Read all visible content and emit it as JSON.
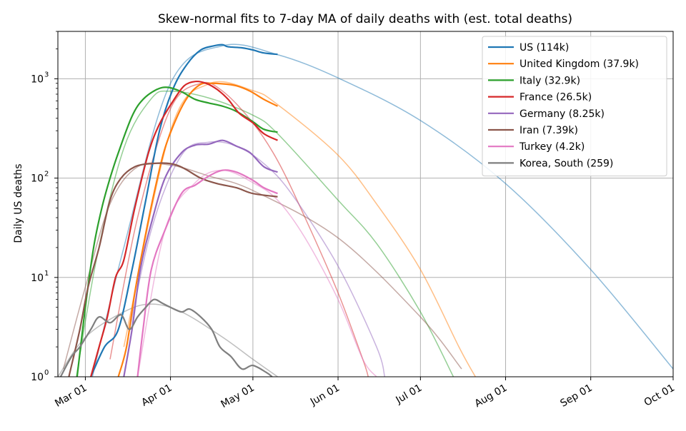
{
  "chart_data": {
    "type": "line",
    "title": "Skew-normal fits to 7-day MA of daily deaths with (est. total deaths)",
    "xlabel": "",
    "ylabel": "Daily US deaths",
    "y_scale": "log",
    "ylim": [
      1,
      3000
    ],
    "xlim": [
      "2020-02-20",
      "2020-10-01"
    ],
    "x_ticks": [
      {
        "date": "2020-03-01",
        "label": "Mar 01"
      },
      {
        "date": "2020-04-01",
        "label": "Apr 01"
      },
      {
        "date": "2020-05-01",
        "label": "May 01"
      },
      {
        "date": "2020-06-01",
        "label": "Jun 01"
      },
      {
        "date": "2020-07-01",
        "label": "Jul 01"
      },
      {
        "date": "2020-08-01",
        "label": "Aug 01"
      },
      {
        "date": "2020-09-01",
        "label": "Sep 01"
      },
      {
        "date": "2020-10-01",
        "label": "Oct 01"
      }
    ],
    "y_ticks": [
      {
        "value": 1,
        "label": "10",
        "exp": "0"
      },
      {
        "value": 10,
        "label": "10",
        "exp": "1"
      },
      {
        "value": 100,
        "label": "10",
        "exp": "2"
      },
      {
        "value": 1000,
        "label": "10",
        "exp": "3"
      }
    ],
    "grid": true,
    "legend_position": "top-right",
    "series": [
      {
        "name": "US (114k)",
        "color": "#1f77b4",
        "observed": [
          [
            "2020-03-03",
            1
          ],
          [
            "2020-03-08",
            2
          ],
          [
            "2020-03-13",
            3
          ],
          [
            "2020-03-18",
            12
          ],
          [
            "2020-03-23",
            60
          ],
          [
            "2020-03-28",
            300
          ],
          [
            "2020-04-02",
            800
          ],
          [
            "2020-04-07",
            1400
          ],
          [
            "2020-04-12",
            1950
          ],
          [
            "2020-04-17",
            2150
          ],
          [
            "2020-04-20",
            2200
          ],
          [
            "2020-04-22",
            2100
          ],
          [
            "2020-04-27",
            2050
          ],
          [
            "2020-05-01",
            1950
          ],
          [
            "2020-05-05",
            1820
          ],
          [
            "2020-05-10",
            1760
          ]
        ],
        "fit": [
          [
            "2020-03-01",
            0.5
          ],
          [
            "2020-03-15",
            20
          ],
          [
            "2020-04-01",
            900
          ],
          [
            "2020-04-20",
            2150
          ],
          [
            "2020-05-10",
            1750
          ],
          [
            "2020-06-01",
            1020
          ],
          [
            "2020-07-01",
            380
          ],
          [
            "2020-08-01",
            88
          ],
          [
            "2020-09-01",
            12
          ],
          [
            "2020-10-01",
            1.2
          ]
        ]
      },
      {
        "name": "United Kingdom (37.9k)",
        "color": "#ff7f0e",
        "observed": [
          [
            "2020-03-13",
            1
          ],
          [
            "2020-03-16",
            2
          ],
          [
            "2020-03-19",
            7
          ],
          [
            "2020-03-22",
            20
          ],
          [
            "2020-03-26",
            70
          ],
          [
            "2020-03-30",
            200
          ],
          [
            "2020-04-04",
            450
          ],
          [
            "2020-04-08",
            700
          ],
          [
            "2020-04-12",
            880
          ],
          [
            "2020-04-15",
            900
          ],
          [
            "2020-04-20",
            890
          ],
          [
            "2020-04-25",
            850
          ],
          [
            "2020-04-30",
            750
          ],
          [
            "2020-05-05",
            620
          ],
          [
            "2020-05-10",
            530
          ]
        ],
        "fit": [
          [
            "2020-03-15",
            2
          ],
          [
            "2020-04-01",
            300
          ],
          [
            "2020-04-15",
            890
          ],
          [
            "2020-05-01",
            760
          ],
          [
            "2020-05-10",
            550
          ],
          [
            "2020-06-01",
            170
          ],
          [
            "2020-06-15",
            55
          ],
          [
            "2020-07-01",
            12
          ],
          [
            "2020-07-15",
            2
          ],
          [
            "2020-07-21",
            1
          ]
        ]
      },
      {
        "name": "Italy (32.9k)",
        "color": "#2ca02c",
        "observed": [
          [
            "2020-02-27",
            1
          ],
          [
            "2020-03-01",
            5
          ],
          [
            "2020-03-04",
            20
          ],
          [
            "2020-03-07",
            50
          ],
          [
            "2020-03-10",
            100
          ],
          [
            "2020-03-13",
            180
          ],
          [
            "2020-03-18",
            420
          ],
          [
            "2020-03-22",
            620
          ],
          [
            "2020-03-27",
            780
          ],
          [
            "2020-03-31",
            820
          ],
          [
            "2020-04-05",
            740
          ],
          [
            "2020-04-10",
            620
          ],
          [
            "2020-04-15",
            570
          ],
          [
            "2020-04-20",
            530
          ],
          [
            "2020-04-25",
            470
          ],
          [
            "2020-05-01",
            370
          ],
          [
            "2020-05-05",
            310
          ],
          [
            "2020-05-10",
            290
          ]
        ],
        "fit": [
          [
            "2020-02-25",
            0.5
          ],
          [
            "2020-03-05",
            15
          ],
          [
            "2020-03-15",
            200
          ],
          [
            "2020-03-25",
            630
          ],
          [
            "2020-04-01",
            750
          ],
          [
            "2020-04-15",
            640
          ],
          [
            "2020-05-01",
            430
          ],
          [
            "2020-05-10",
            280
          ],
          [
            "2020-06-01",
            60
          ],
          [
            "2020-06-15",
            22
          ],
          [
            "2020-07-01",
            4.5
          ],
          [
            "2020-07-13",
            1
          ]
        ]
      },
      {
        "name": "France (26.5k)",
        "color": "#d62728",
        "observed": [
          [
            "2020-03-03",
            1
          ],
          [
            "2020-03-06",
            2
          ],
          [
            "2020-03-09",
            4
          ],
          [
            "2020-03-12",
            10
          ],
          [
            "2020-03-15",
            15
          ],
          [
            "2020-03-19",
            50
          ],
          [
            "2020-03-24",
            180
          ],
          [
            "2020-03-28",
            350
          ],
          [
            "2020-04-02",
            600
          ],
          [
            "2020-04-06",
            850
          ],
          [
            "2020-04-10",
            940
          ],
          [
            "2020-04-14",
            900
          ],
          [
            "2020-04-18",
            780
          ],
          [
            "2020-04-22",
            620
          ],
          [
            "2020-04-26",
            450
          ],
          [
            "2020-05-01",
            360
          ],
          [
            "2020-05-05",
            280
          ],
          [
            "2020-05-10",
            240
          ]
        ],
        "fit": [
          [
            "2020-03-10",
            1.5
          ],
          [
            "2020-03-20",
            40
          ],
          [
            "2020-04-01",
            500
          ],
          [
            "2020-04-12",
            900
          ],
          [
            "2020-04-20",
            750
          ],
          [
            "2020-05-01",
            360
          ],
          [
            "2020-05-10",
            150
          ],
          [
            "2020-05-20",
            40
          ],
          [
            "2020-06-01",
            7
          ],
          [
            "2020-06-10",
            1.5
          ],
          [
            "2020-06-12",
            1
          ]
        ]
      },
      {
        "name": "Germany (8.25k)",
        "color": "#9467bd",
        "observed": [
          [
            "2020-03-15",
            1
          ],
          [
            "2020-03-18",
            3
          ],
          [
            "2020-03-21",
            12
          ],
          [
            "2020-03-25",
            35
          ],
          [
            "2020-03-30",
            100
          ],
          [
            "2020-04-05",
            180
          ],
          [
            "2020-04-10",
            215
          ],
          [
            "2020-04-15",
            220
          ],
          [
            "2020-04-20",
            240
          ],
          [
            "2020-04-25",
            210
          ],
          [
            "2020-04-30",
            180
          ],
          [
            "2020-05-05",
            130
          ],
          [
            "2020-05-10",
            115
          ]
        ],
        "fit": [
          [
            "2020-03-15",
            1.5
          ],
          [
            "2020-03-25",
            30
          ],
          [
            "2020-04-05",
            170
          ],
          [
            "2020-04-15",
            230
          ],
          [
            "2020-04-25",
            210
          ],
          [
            "2020-05-05",
            140
          ],
          [
            "2020-05-15",
            70
          ],
          [
            "2020-06-01",
            13
          ],
          [
            "2020-06-15",
            2
          ],
          [
            "2020-06-18",
            1
          ]
        ]
      },
      {
        "name": "Iran (7.39k)",
        "color": "#8c564b",
        "observed": [
          [
            "2020-02-24",
            1
          ],
          [
            "2020-02-28",
            3
          ],
          [
            "2020-03-02",
            8
          ],
          [
            "2020-03-06",
            20
          ],
          [
            "2020-03-10",
            60
          ],
          [
            "2020-03-14",
            100
          ],
          [
            "2020-03-19",
            130
          ],
          [
            "2020-03-25",
            140
          ],
          [
            "2020-04-01",
            140
          ],
          [
            "2020-04-06",
            125
          ],
          [
            "2020-04-12",
            100
          ],
          [
            "2020-04-18",
            88
          ],
          [
            "2020-04-25",
            80
          ],
          [
            "2020-05-01",
            70
          ],
          [
            "2020-05-10",
            65
          ]
        ],
        "fit": [
          [
            "2020-02-22",
            1.2
          ],
          [
            "2020-03-01",
            8
          ],
          [
            "2020-03-10",
            55
          ],
          [
            "2020-03-20",
            130
          ],
          [
            "2020-04-01",
            135
          ],
          [
            "2020-04-15",
            105
          ],
          [
            "2020-05-01",
            75
          ],
          [
            "2020-06-01",
            25
          ],
          [
            "2020-07-01",
            4
          ],
          [
            "2020-07-16",
            1.2
          ]
        ]
      },
      {
        "name": "Turkey (4.2k)",
        "color": "#e377c2",
        "observed": [
          [
            "2020-03-20",
            1
          ],
          [
            "2020-03-22",
            3
          ],
          [
            "2020-03-25",
            12
          ],
          [
            "2020-03-30",
            30
          ],
          [
            "2020-04-05",
            70
          ],
          [
            "2020-04-10",
            85
          ],
          [
            "2020-04-15",
            105
          ],
          [
            "2020-04-20",
            120
          ],
          [
            "2020-04-25",
            115
          ],
          [
            "2020-05-01",
            95
          ],
          [
            "2020-05-05",
            80
          ],
          [
            "2020-05-10",
            70
          ]
        ],
        "fit": [
          [
            "2020-03-20",
            1
          ],
          [
            "2020-03-30",
            30
          ],
          [
            "2020-04-10",
            90
          ],
          [
            "2020-04-20",
            120
          ],
          [
            "2020-05-01",
            90
          ],
          [
            "2020-05-10",
            60
          ],
          [
            "2020-05-20",
            25
          ],
          [
            "2020-06-01",
            6
          ],
          [
            "2020-06-10",
            1.5
          ],
          [
            "2020-06-15",
            1
          ]
        ]
      },
      {
        "name": "Korea, South (259)",
        "color": "#7f7f7f",
        "observed": [
          [
            "2020-02-21",
            1
          ],
          [
            "2020-02-25",
            1.6
          ],
          [
            "2020-02-28",
            2
          ],
          [
            "2020-03-03",
            3
          ],
          [
            "2020-03-06",
            4
          ],
          [
            "2020-03-10",
            3.5
          ],
          [
            "2020-03-14",
            4.2
          ],
          [
            "2020-03-17",
            3
          ],
          [
            "2020-03-20",
            4
          ],
          [
            "2020-03-23",
            5
          ],
          [
            "2020-03-26",
            6
          ],
          [
            "2020-03-29",
            5.5
          ],
          [
            "2020-04-01",
            5
          ],
          [
            "2020-04-05",
            4.5
          ],
          [
            "2020-04-08",
            4.8
          ],
          [
            "2020-04-12",
            4
          ],
          [
            "2020-04-16",
            3
          ],
          [
            "2020-04-19",
            2
          ],
          [
            "2020-04-23",
            1.6
          ],
          [
            "2020-04-27",
            1.2
          ],
          [
            "2020-05-01",
            1.3
          ],
          [
            "2020-05-06",
            1.1
          ],
          [
            "2020-05-08",
            1
          ]
        ],
        "fit": [
          [
            "2020-02-20",
            1
          ],
          [
            "2020-03-01",
            2.5
          ],
          [
            "2020-03-15",
            4.5
          ],
          [
            "2020-03-25",
            5.4
          ],
          [
            "2020-04-05",
            4.5
          ],
          [
            "2020-04-20",
            2.5
          ],
          [
            "2020-05-01",
            1.5
          ],
          [
            "2020-05-10",
            1
          ]
        ]
      }
    ]
  }
}
